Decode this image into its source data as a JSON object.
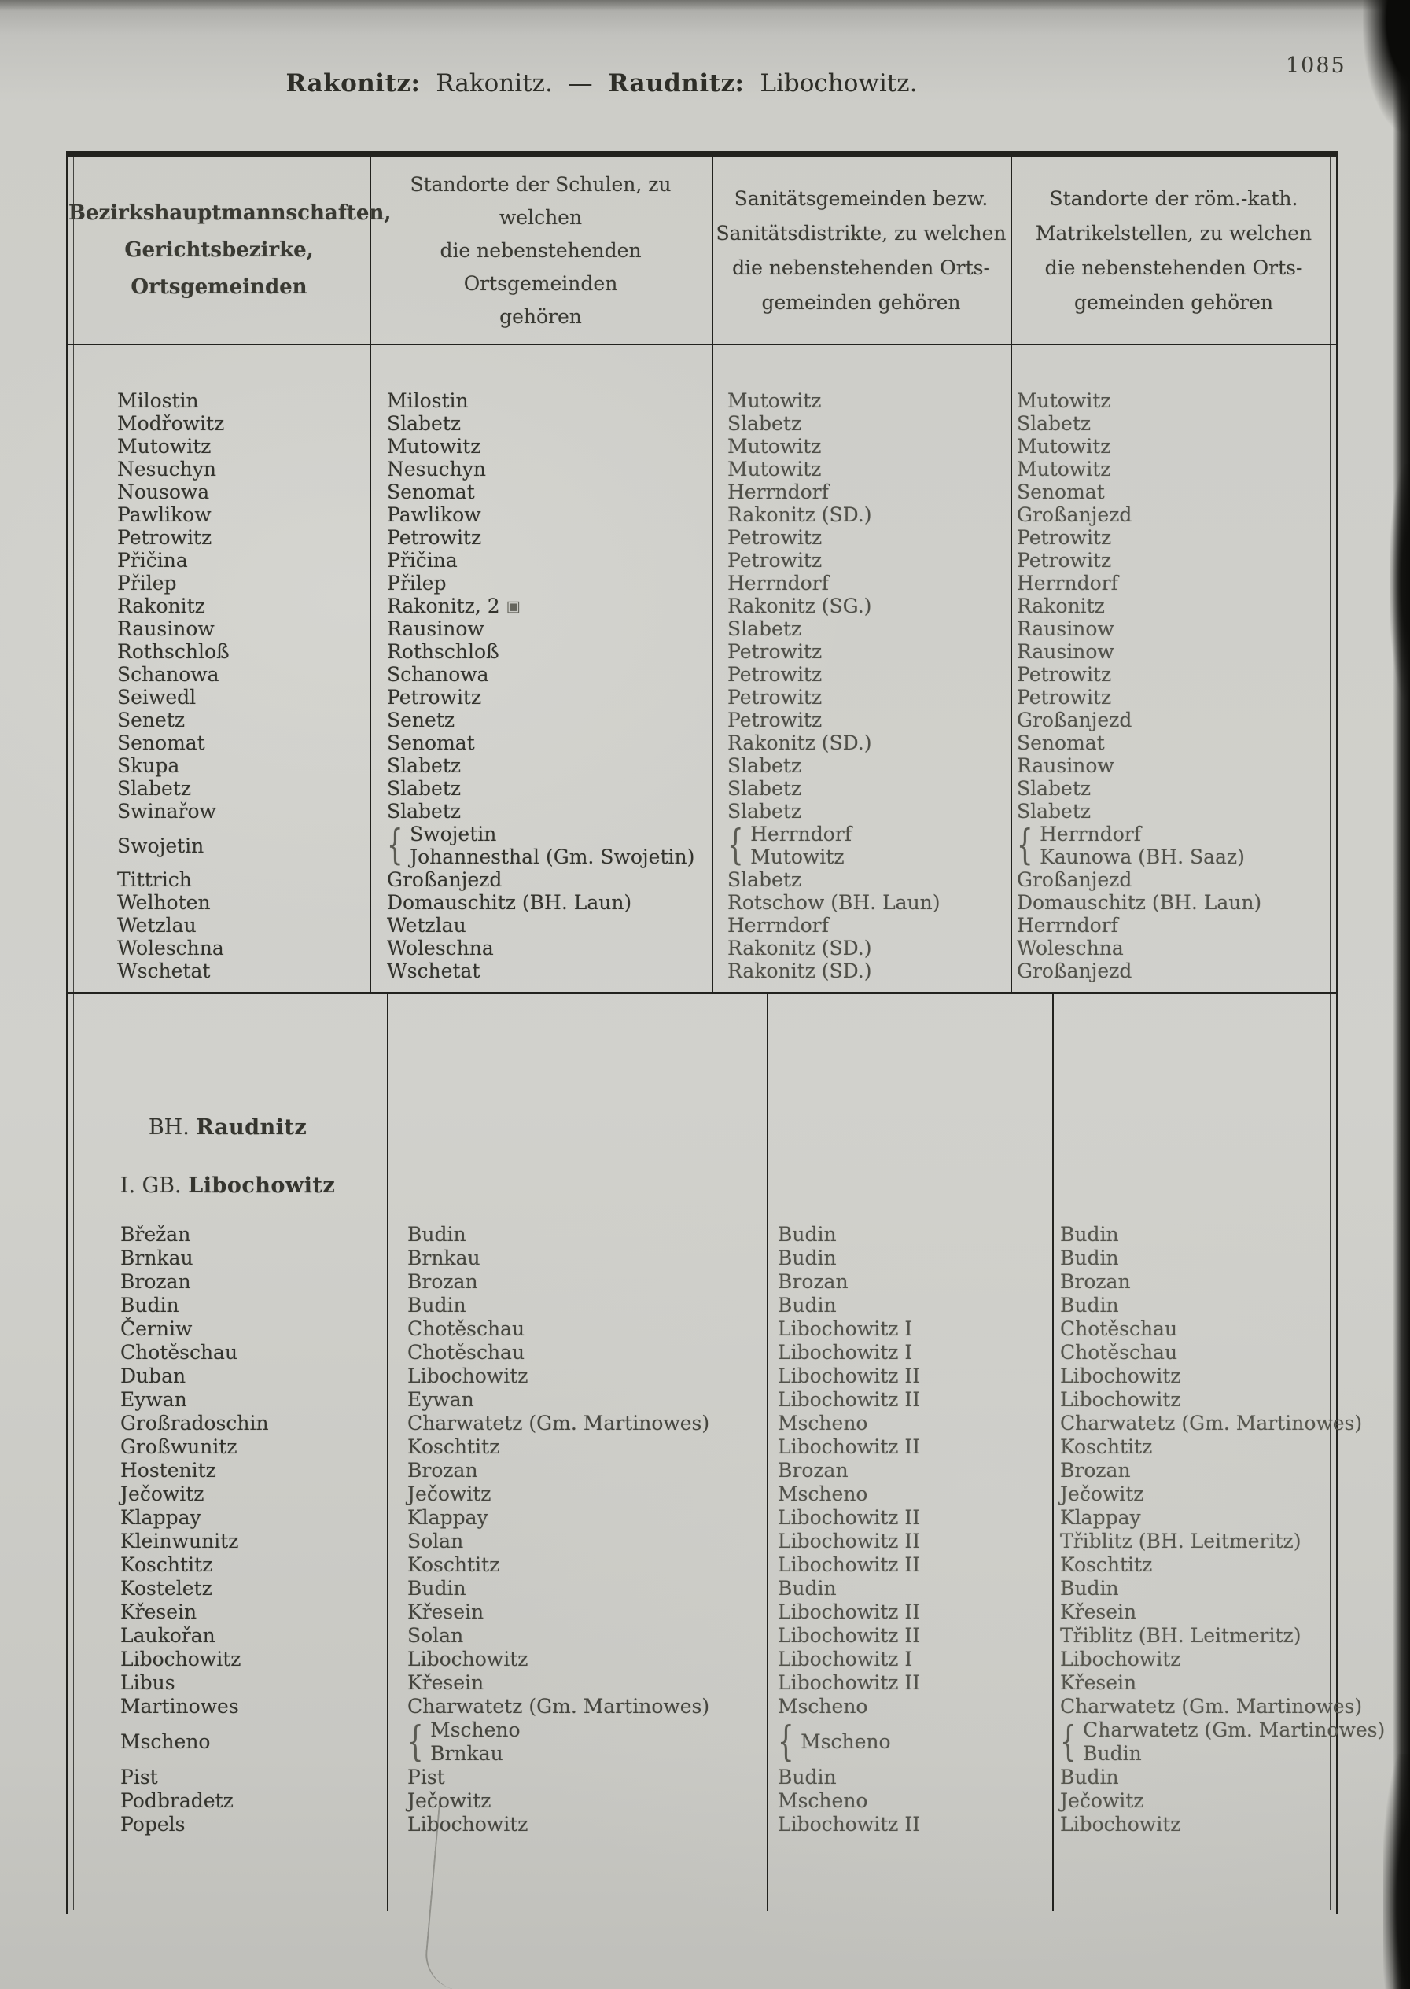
{
  "page_number": "1085",
  "title": {
    "b1": "Rakonitz:",
    "n1": "Rakonitz.",
    "dash": "—",
    "b2": "Raudnitz:",
    "n2": "Libochowitz."
  },
  "icons": {
    "school_symbol": "▣"
  },
  "colors": {
    "ink": "#33332d",
    "ink_light": "#52524b",
    "paper": "#cfcfca",
    "rule": "#22221e"
  },
  "table": {
    "header": {
      "col1": [
        "Bezirkshauptmannschaften,",
        "Gerichtsbezirke,",
        "Ortsgemeinden"
      ],
      "col2": [
        "Standorte der Schulen, zu welchen",
        "die nebenstehenden Ortsgemeinden",
        "gehören"
      ],
      "col3": [
        "Sanitätsgemeinden bezw.",
        "Sanitätsdistrikte, zu welchen",
        "die nebenstehenden Orts-",
        "gemeinden gehören"
      ],
      "col4": [
        "Standorte der röm.-kath.",
        "Matrikelstellen, zu welchen",
        "die nebenstehenden Orts-",
        "gemeinden gehören"
      ]
    },
    "section2": {
      "line1_prefix": "BH.",
      "line1_name": "Raudnitz",
      "line2_prefix": "I. GB.",
      "line2_name": "Libochowitz"
    },
    "block1_rows": [
      [
        "Milostin",
        "Milostin",
        "Mutowitz",
        "Mutowitz"
      ],
      [
        "Modřowitz",
        "Slabetz",
        "Slabetz",
        "Slabetz"
      ],
      [
        "Mutowitz",
        "Mutowitz",
        "Mutowitz",
        "Mutowitz"
      ],
      [
        "Nesuchyn",
        "Nesuchyn",
        "Mutowitz",
        "Mutowitz"
      ],
      [
        "Nousowa",
        "Senomat",
        "Herrndorf",
        "Senomat"
      ],
      [
        "Pawlikow",
        "Pawlikow",
        "Rakonitz (SD.)",
        "Großanjezd"
      ],
      [
        "Petrowitz",
        "Petrowitz",
        "Petrowitz",
        "Petrowitz"
      ],
      [
        "Přičina",
        "Přičina",
        "Petrowitz",
        "Petrowitz"
      ],
      [
        "Přilep",
        "Přilep",
        "Herrndorf",
        "Herrndorf"
      ],
      [
        "Rakonitz",
        {
          "t": "Rakonitz, 2",
          "i": true
        },
        "Rakonitz (SG.)",
        "Rakonitz"
      ],
      [
        "Rausinow",
        "Rausinow",
        "Slabetz",
        "Rausinow"
      ],
      [
        "Rothschloß",
        "Rothschloß",
        "Petrowitz",
        "Rausinow"
      ],
      [
        "Schanowa",
        "Schanowa",
        "Petrowitz",
        "Petrowitz"
      ],
      [
        "Seiwedl",
        "Petrowitz",
        "Petrowitz",
        "Petrowitz"
      ],
      [
        "Senetz",
        "Senetz",
        "Petrowitz",
        "Großanjezd"
      ],
      [
        "Senomat",
        "Senomat",
        "Rakonitz (SD.)",
        "Senomat"
      ],
      [
        "Skupa",
        "Slabetz",
        "Slabetz",
        "Rausinow"
      ],
      [
        "Slabetz",
        "Slabetz",
        "Slabetz",
        "Slabetz"
      ],
      [
        "Swinařow",
        "Slabetz",
        "Slabetz",
        "Slabetz"
      ],
      [
        "Swojetin",
        {
          "p": [
            "Swojetin",
            "Johannesthal (Gm. Swojetin)"
          ]
        },
        {
          "p": [
            "Herrndorf",
            "Mutowitz"
          ]
        },
        {
          "p": [
            "Herrndorf",
            "Kaunowa (BH. Saaz)"
          ]
        }
      ],
      [
        "Tittrich",
        "Großanjezd",
        "Slabetz",
        "Großanjezd"
      ],
      [
        "Welhoten",
        "Domauschitz (BH. Laun)",
        "Rotschow (BH. Laun)",
        "Domauschitz (BH. Laun)"
      ],
      [
        "Wetzlau",
        "Wetzlau",
        "Herrndorf",
        "Herrndorf"
      ],
      [
        "Woleschna",
        "Woleschna",
        "Rakonitz (SD.)",
        "Woleschna"
      ],
      [
        "Wschetat",
        "Wschetat",
        "Rakonitz (SD.)",
        "Großanjezd"
      ]
    ],
    "block2_rows": [
      [
        "Břežan",
        "Budin",
        "Budin",
        "Budin"
      ],
      [
        "Brnkau",
        "Brnkau",
        "Budin",
        "Budin"
      ],
      [
        "Brozan",
        "Brozan",
        "Brozan",
        "Brozan"
      ],
      [
        "Budin",
        "Budin",
        "Budin",
        "Budin"
      ],
      [
        "Černiw",
        "Chotěschau",
        "Libochowitz I",
        "Chotěschau"
      ],
      [
        "Chotěschau",
        "Chotěschau",
        "Libochowitz I",
        "Chotěschau"
      ],
      [
        "Duban",
        "Libochowitz",
        "Libochowitz II",
        "Libochowitz"
      ],
      [
        "Eywan",
        "Eywan",
        "Libochowitz II",
        "Libochowitz"
      ],
      [
        "Großradoschin",
        "Charwatetz (Gm. Martinowes)",
        "Mscheno",
        "Charwatetz (Gm. Martinowes)"
      ],
      [
        "Großwunitz",
        "Koschtitz",
        "Libochowitz II",
        "Koschtitz"
      ],
      [
        "Hostenitz",
        "Brozan",
        "Brozan",
        "Brozan"
      ],
      [
        "Ječowitz",
        "Ječowitz",
        "Mscheno",
        "Ječowitz"
      ],
      [
        "Klappay",
        "Klappay",
        "Libochowitz II",
        "Klappay"
      ],
      [
        "Kleinwunitz",
        "Solan",
        "Libochowitz II",
        "Třiblitz (BH. Leitmeritz)"
      ],
      [
        "Koschtitz",
        "Koschtitz",
        "Libochowitz II",
        "Koschtitz"
      ],
      [
        "Kosteletz",
        "Budin",
        "Budin",
        "Budin"
      ],
      [
        "Křesein",
        "Křesein",
        "Libochowitz II",
        "Křesein"
      ],
      [
        "Laukořan",
        "Solan",
        "Libochowitz II",
        "Třiblitz (BH. Leitmeritz)"
      ],
      [
        "Libochowitz",
        "Libochowitz",
        "Libochowitz I",
        "Libochowitz"
      ],
      [
        "Libus",
        "Křesein",
        "Libochowitz II",
        "Křesein"
      ],
      [
        "Martinowes",
        "Charwatetz (Gm. Martinowes)",
        "Mscheno",
        "Charwatetz (Gm. Martinowes)"
      ],
      [
        "Mscheno",
        {
          "p": [
            "Mscheno",
            "Brnkau"
          ]
        },
        {
          "s": "Mscheno"
        },
        {
          "p": [
            "Charwatetz (Gm. Martinowes)",
            "Budin"
          ]
        }
      ],
      [
        "Pist",
        "Pist",
        "Budin",
        "Budin"
      ],
      [
        "Podbradetz",
        "Ječowitz",
        "Mscheno",
        "Ječowitz"
      ],
      [
        "Popels",
        "Libochowitz",
        "Libochowitz II",
        "Libochowitz"
      ]
    ]
  }
}
